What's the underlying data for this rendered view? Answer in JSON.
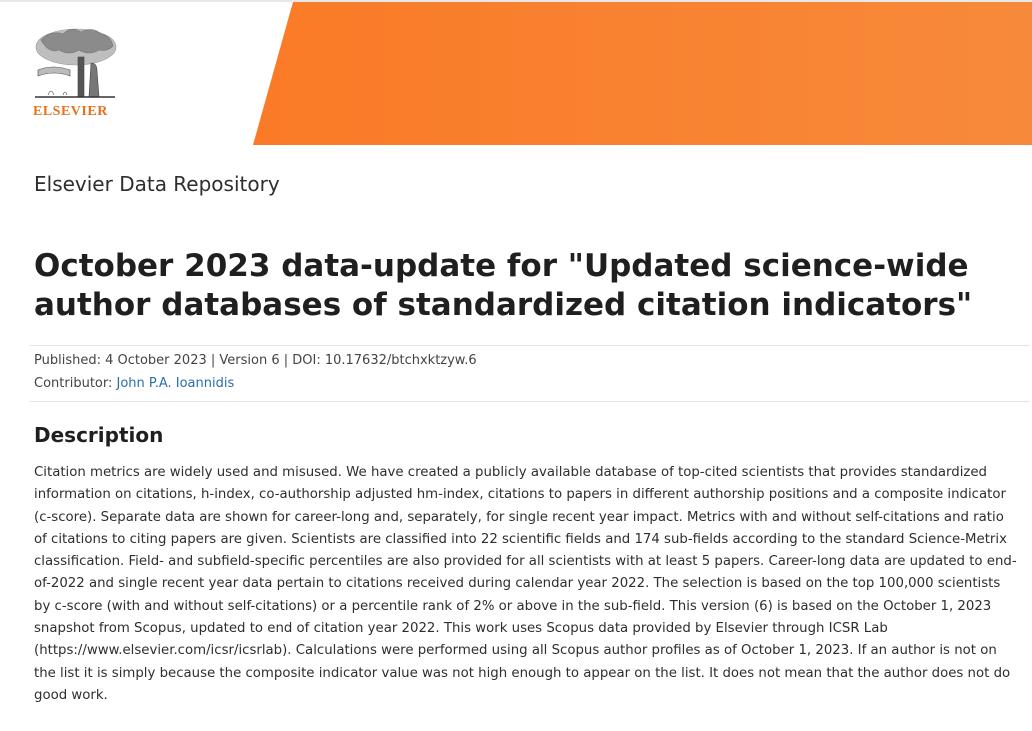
{
  "header": {
    "logo_text": "ELSEVIER",
    "brand_color": "#f97b28",
    "repository_name": "Elsevier Data Repository"
  },
  "dataset": {
    "title": "October 2023 data-update for \"Updated science-wide author databases of standardized citation indicators\"",
    "published_line": "Published: 4 October 2023 | Version 6 | DOI: 10.17632/btchxktzyw.6",
    "contributor_label": "Contributor: ",
    "contributor_name": "John P.A. Ioannidis"
  },
  "description": {
    "heading": "Description",
    "text": "Citation metrics are widely used and misused. We have created a publicly available database of top-cited scientists that provides standardized information on citations, h-index, co-authorship adjusted hm-index, citations to papers in different authorship positions and a composite indicator (c-score). Separate data are shown for career-long and, separately, for single recent year impact. Metrics with and without self-citations and ratio of citations to citing papers are given. Scientists are classified into 22 scientific fields and 174 sub-fields according to the standard Science-Metrix classification. Field- and subfield-specific percentiles are also provided for all scientists with at least 5 papers. Career-long data are updated to end-of-2022 and single recent year data pertain to citations received during calendar year 2022. The selection is based on the top 100,000 scientists by c-score (with and without self-citations) or a percentile rank of 2% or above in the sub-field. This version (6) is based on the October 1, 2023 snapshot from Scopus, updated to end of citation year 2022. This work uses Scopus data provided by Elsevier through ICSR Lab (https://www.elsevier.com/icsr/icsrlab). Calculations were performed using all Scopus author profiles as of October 1, 2023. If an author is not on the list it is simply because the composite indicator value was not high enough to appear on the list. It does not mean that the author does not do good work."
  }
}
